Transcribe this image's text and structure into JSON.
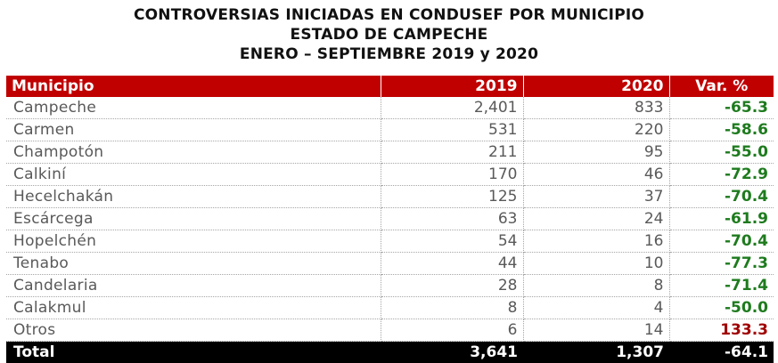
{
  "title": {
    "line1": "CONTROVERSIAS INICIADAS EN CONDUSEF POR MUNICIPIO",
    "line2": "ESTADO DE CAMPECHE",
    "line3": "ENERO – SEPTIEMBRE 2019 y 2020"
  },
  "table": {
    "headers": {
      "municipio": "Municipio",
      "y2019": "2019",
      "y2020": "2020",
      "var": "Var. %"
    },
    "rows": [
      {
        "municipio": "Campeche",
        "y2019": "2,401",
        "y2020": "833",
        "var": "-65.3",
        "trend": "neg"
      },
      {
        "municipio": "Carmen",
        "y2019": "531",
        "y2020": "220",
        "var": "-58.6",
        "trend": "neg"
      },
      {
        "municipio": "Champotón",
        "y2019": "211",
        "y2020": "95",
        "var": "-55.0",
        "trend": "neg"
      },
      {
        "municipio": "Calkiní",
        "y2019": "170",
        "y2020": "46",
        "var": "-72.9",
        "trend": "neg"
      },
      {
        "municipio": "Hecelchakán",
        "y2019": "125",
        "y2020": "37",
        "var": "-70.4",
        "trend": "neg"
      },
      {
        "municipio": "Escárcega",
        "y2019": "63",
        "y2020": "24",
        "var": "-61.9",
        "trend": "neg"
      },
      {
        "municipio": "Hopelchén",
        "y2019": "54",
        "y2020": "16",
        "var": "-70.4",
        "trend": "neg"
      },
      {
        "municipio": "Tenabo",
        "y2019": "44",
        "y2020": "10",
        "var": "-77.3",
        "trend": "neg"
      },
      {
        "municipio": "Candelaria",
        "y2019": "28",
        "y2020": "8",
        "var": "-71.4",
        "trend": "neg"
      },
      {
        "municipio": "Calakmul",
        "y2019": "8",
        "y2020": "4",
        "var": "-50.0",
        "trend": "neg"
      },
      {
        "municipio": "Otros",
        "y2019": "6",
        "y2020": "14",
        "var": "133.3",
        "trend": "pos"
      }
    ],
    "total": {
      "municipio": "Total",
      "y2019": "3,641",
      "y2020": "1,307",
      "var": "-64.1"
    }
  },
  "colors": {
    "header_bg": "#c00000",
    "total_bg": "#000000",
    "negative_var": "#1e7b1e",
    "positive_var": "#a00000",
    "body_text": "#595959"
  }
}
